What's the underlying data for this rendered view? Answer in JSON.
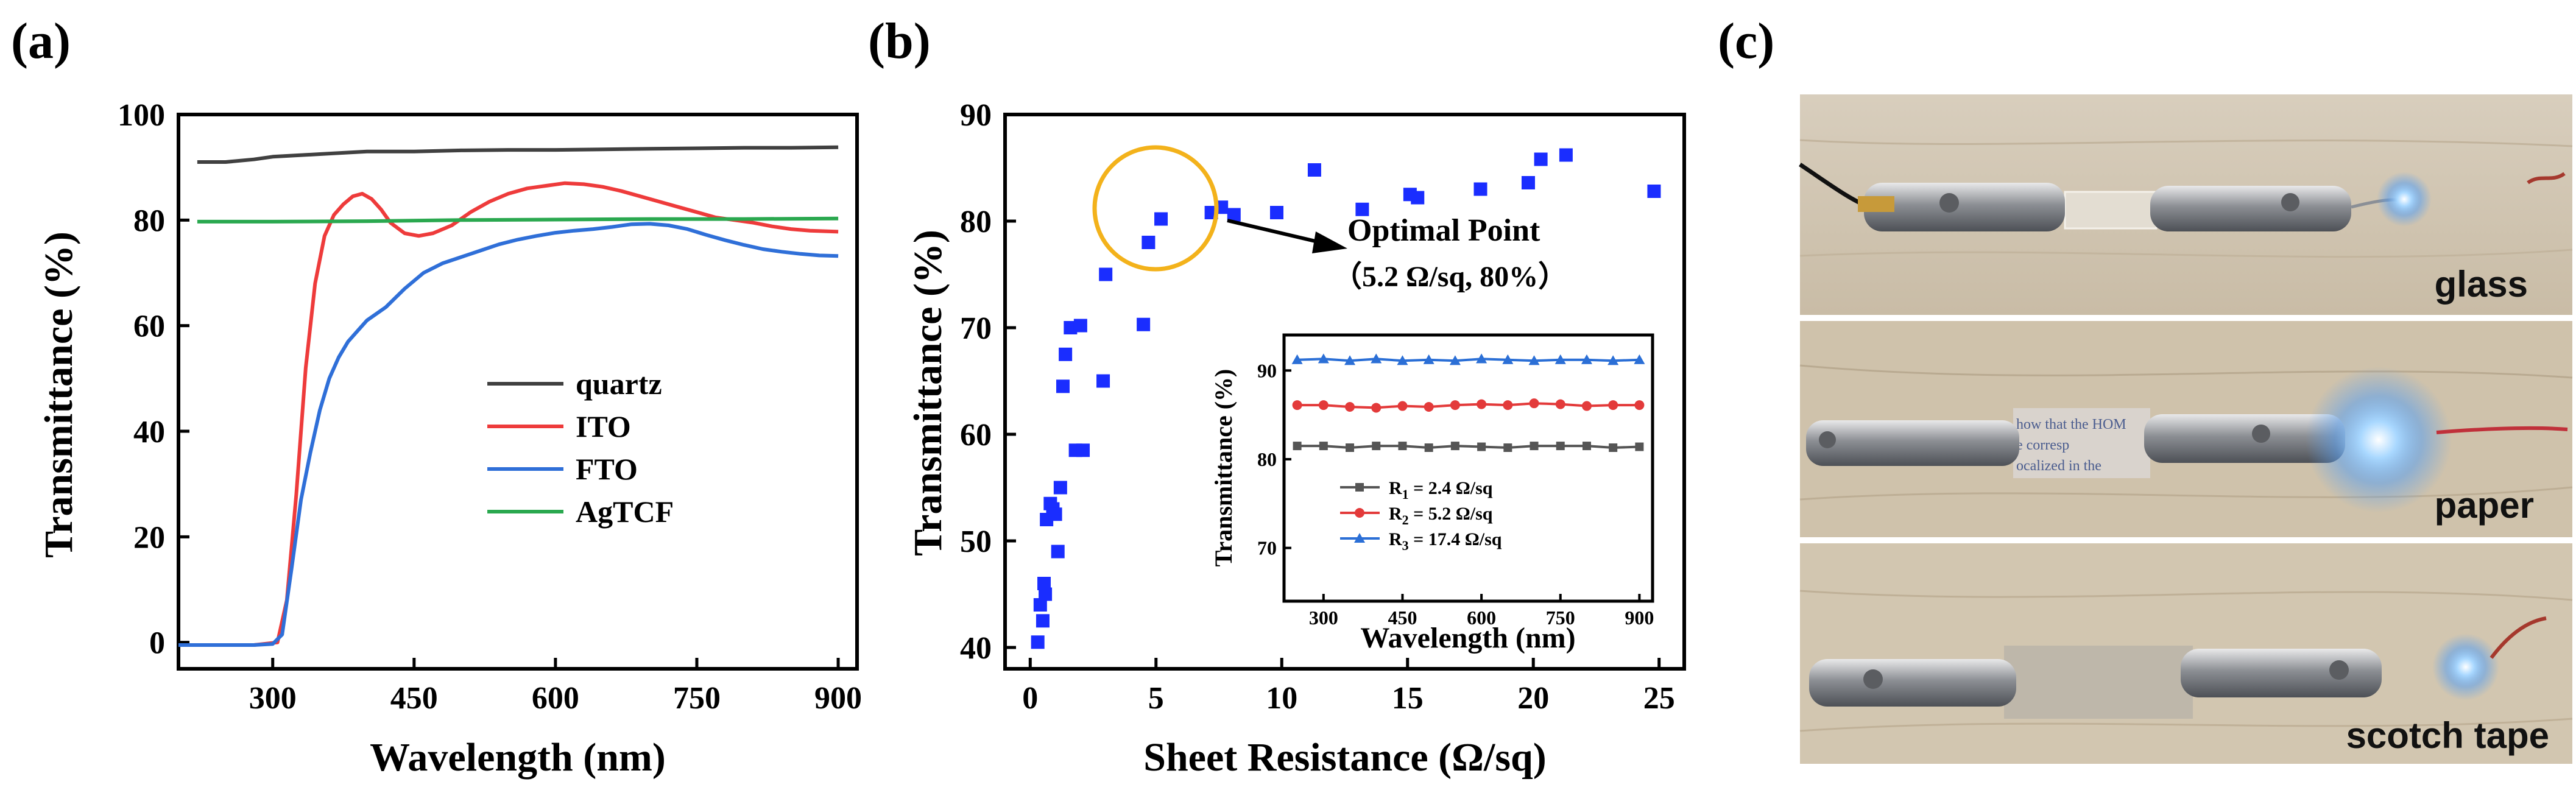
{
  "panel_labels": {
    "a": "(a)",
    "b": "(b)",
    "c": "(c)"
  },
  "colors": {
    "quartz": "#404040",
    "ito": "#ee3b3b",
    "fto": "#2f6fd8",
    "agtcf": "#2aa84f",
    "markers": "#1a2dff",
    "circle": "#f3b21b"
  },
  "chart_data": [
    {
      "id": "a",
      "type": "line",
      "xlabel": "Wavelength (nm)",
      "ylabel": "Transmittance (%)",
      "xlim": [
        200,
        920
      ],
      "ylim": [
        -5,
        100
      ],
      "xticks": [
        "300",
        "450",
        "600",
        "750",
        "900"
      ],
      "xtick_values": [
        300,
        450,
        600,
        750,
        900
      ],
      "yticks": [
        "0",
        "20",
        "40",
        "60",
        "80",
        "100"
      ],
      "ytick_values": [
        0,
        20,
        40,
        60,
        80,
        100
      ],
      "legend_position": "center-right",
      "series": [
        {
          "name": "quartz",
          "color_key": "quartz",
          "x": [
            220,
            250,
            280,
            300,
            350,
            400,
            450,
            500,
            550,
            600,
            650,
            700,
            750,
            800,
            850,
            900
          ],
          "y": [
            91,
            91,
            91.5,
            92,
            92.5,
            93,
            93,
            93.2,
            93.3,
            93.3,
            93.4,
            93.5,
            93.6,
            93.7,
            93.7,
            93.8
          ]
        },
        {
          "name": "ITO",
          "color_key": "ito",
          "x": [
            200,
            280,
            305,
            315,
            325,
            335,
            345,
            355,
            365,
            375,
            385,
            395,
            405,
            415,
            425,
            440,
            455,
            470,
            490,
            510,
            530,
            550,
            570,
            590,
            610,
            630,
            650,
            670,
            690,
            710,
            730,
            750,
            770,
            790,
            810,
            830,
            850,
            870,
            900
          ],
          "y": [
            -0.5,
            -0.5,
            0,
            8,
            28,
            52,
            68,
            77,
            81,
            83,
            84.5,
            85,
            84,
            82,
            79.5,
            77.5,
            77,
            77.5,
            79,
            81.5,
            83.5,
            85,
            86,
            86.5,
            87,
            86.8,
            86.3,
            85.5,
            84.5,
            83.5,
            82.5,
            81.5,
            80.5,
            80,
            79.5,
            78.8,
            78.3,
            78,
            77.8
          ]
        },
        {
          "name": "FTO",
          "color_key": "fto",
          "x": [
            200,
            280,
            300,
            310,
            320,
            330,
            340,
            350,
            360,
            370,
            380,
            390,
            400,
            420,
            440,
            460,
            480,
            500,
            520,
            540,
            560,
            580,
            600,
            620,
            640,
            660,
            680,
            700,
            720,
            740,
            760,
            780,
            800,
            820,
            840,
            860,
            880,
            900
          ],
          "y": [
            -0.5,
            -0.5,
            -0.3,
            1.5,
            14,
            27,
            36,
            44,
            50,
            54,
            57,
            59,
            61,
            63.5,
            67,
            70,
            71.8,
            73,
            74.2,
            75.4,
            76.3,
            77,
            77.6,
            78,
            78.3,
            78.7,
            79.2,
            79.3,
            79,
            78.3,
            77.2,
            76.2,
            75.3,
            74.5,
            74,
            73.6,
            73.3,
            73.2
          ]
        },
        {
          "name": "AgTCF",
          "color_key": "agtcf",
          "x": [
            220,
            300,
            400,
            500,
            600,
            700,
            800,
            900
          ],
          "y": [
            79.7,
            79.7,
            79.8,
            80,
            80.1,
            80.2,
            80.2,
            80.3
          ]
        }
      ]
    },
    {
      "id": "b",
      "type": "scatter",
      "xlabel": "Sheet Resistance (Ω/sq)",
      "ylabel": "Transmittance (%)",
      "xlim": [
        -1,
        26
      ],
      "ylim": [
        38,
        90
      ],
      "xticks": [
        "0",
        "5",
        "10",
        "15",
        "20",
        "25"
      ],
      "xtick_values": [
        0,
        5,
        10,
        15,
        20,
        25
      ],
      "yticks": [
        "40",
        "50",
        "60",
        "70",
        "80",
        "90"
      ],
      "ytick_values": [
        40,
        50,
        60,
        70,
        80,
        90
      ],
      "points": {
        "x": [
          0.3,
          0.4,
          0.5,
          0.55,
          0.6,
          0.65,
          0.8,
          0.9,
          1.0,
          1.1,
          1.2,
          1.3,
          1.4,
          1.6,
          1.8,
          2.0,
          2.1,
          2.9,
          3.0,
          4.5,
          4.7,
          5.2,
          7.2,
          7.6,
          8.1,
          9.8,
          11.3,
          13.2,
          15.1,
          15.4,
          17.9,
          19.8,
          20.3,
          21.3,
          24.8
        ],
        "y": [
          40.5,
          44,
          42.5,
          46,
          45,
          52,
          53.5,
          53,
          52.5,
          49,
          55,
          64.5,
          67.5,
          70,
          58.5,
          70.2,
          58.5,
          65,
          75,
          70.3,
          78,
          80.2,
          80.8,
          81.3,
          80.6,
          80.8,
          84.8,
          81.1,
          82.5,
          82.2,
          83,
          83.6,
          85.8,
          86.2,
          82.8
        ]
      },
      "annotation": {
        "title": "Optimal Point",
        "detail": "（5.2 Ω/sq, 80%）",
        "x": 5.2,
        "y": 80
      },
      "inset": {
        "type": "line",
        "xlabel": "Wavelength (nm)",
        "ylabel": "Transmittance (%)",
        "xlim": [
          225,
          925
        ],
        "ylim": [
          64,
          94
        ],
        "xticks": [
          "300",
          "450",
          "600",
          "750",
          "900"
        ],
        "xtick_values": [
          300,
          450,
          600,
          750,
          900
        ],
        "yticks": [
          "70",
          "80",
          "90"
        ],
        "ytick_values": [
          70,
          80,
          90
        ],
        "series": [
          {
            "name_main": "R",
            "name_sub": "1",
            "name_rest": " = 2.4 Ω/sq",
            "color": "#555555",
            "marker": "square",
            "x": [
              250,
              300,
              350,
              400,
              450,
              500,
              550,
              600,
              650,
              700,
              750,
              800,
              850,
              900
            ],
            "y": [
              81.5,
              81.5,
              81.3,
              81.5,
              81.5,
              81.3,
              81.5,
              81.4,
              81.3,
              81.5,
              81.5,
              81.5,
              81.3,
              81.4
            ]
          },
          {
            "name_main": "R",
            "name_sub": "2",
            "name_rest": " = 5.2 Ω/sq",
            "color": "#e33a3a",
            "marker": "circle",
            "x": [
              250,
              300,
              350,
              400,
              450,
              500,
              550,
              600,
              650,
              700,
              750,
              800,
              850,
              900
            ],
            "y": [
              86.1,
              86.1,
              85.9,
              85.8,
              86.0,
              85.9,
              86.1,
              86.2,
              86.1,
              86.3,
              86.2,
              86.0,
              86.1,
              86.1
            ]
          },
          {
            "name_main": "R",
            "name_sub": "3",
            "name_rest": " = 17.4 Ω/sq",
            "color": "#2b6fd6",
            "marker": "triangle",
            "x": [
              250,
              300,
              350,
              400,
              450,
              500,
              550,
              600,
              650,
              700,
              750,
              800,
              850,
              900
            ],
            "y": [
              91.2,
              91.3,
              91.1,
              91.3,
              91.1,
              91.2,
              91.1,
              91.3,
              91.2,
              91.1,
              91.2,
              91.2,
              91.1,
              91.2
            ]
          }
        ]
      }
    }
  ],
  "photos": [
    {
      "label": "glass"
    },
    {
      "label": "paper",
      "paper_text": [
        "how that the HOM",
        "e corresp",
        "ocalized  in  the"
      ]
    },
    {
      "label": "scotch tape"
    }
  ]
}
